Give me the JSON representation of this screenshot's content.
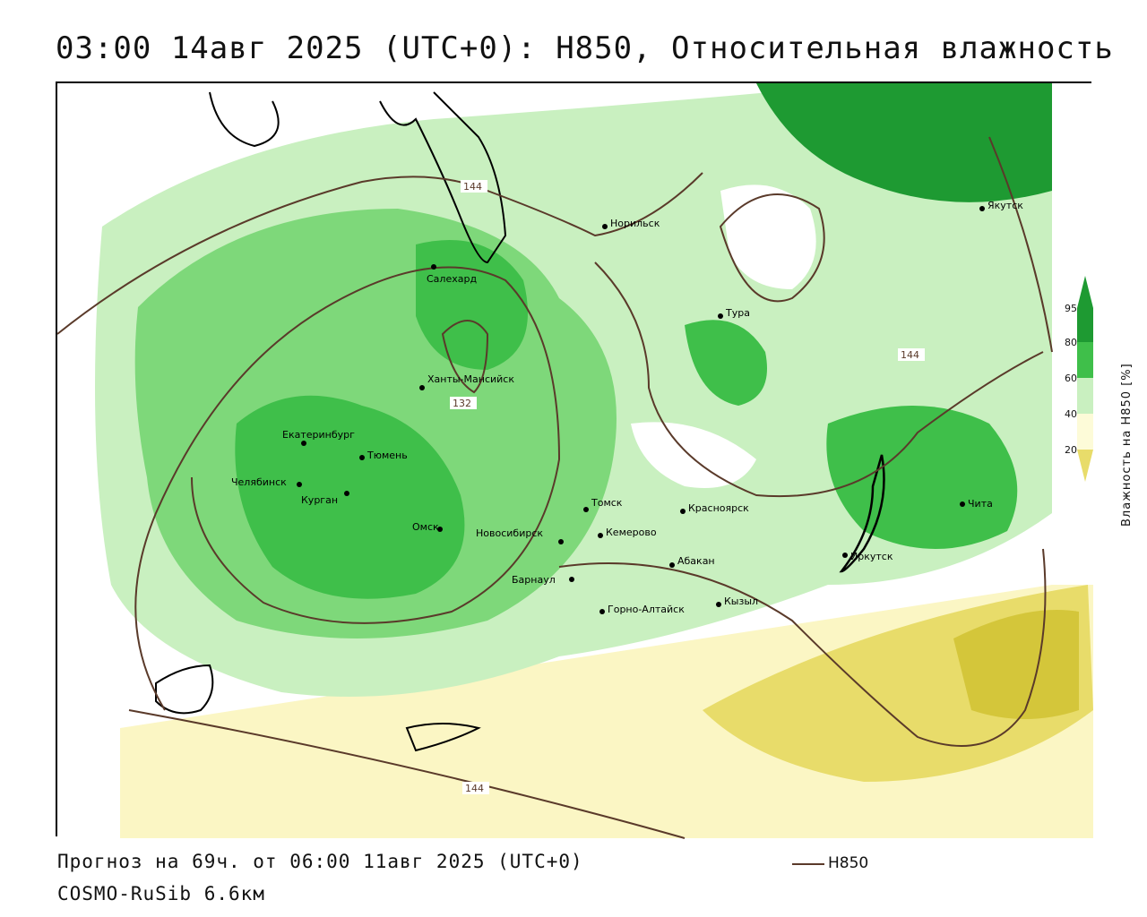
{
  "title": "03:00 14авг 2025 (UTC+0): H850, Относительная влажность",
  "forecast_line": "Прогноз на 69ч. от 06:00 11авг 2025 (UTC+0)",
  "model_line": "COSMO-RuSib 6.6км",
  "legend": {
    "line_label": "H850",
    "line_color": "#5a3a2a"
  },
  "colorbar": {
    "label": "Влажность на H850 [%]",
    "ticks": [
      "20",
      "40",
      "60",
      "80",
      "95"
    ],
    "colors": [
      "#d6c43a",
      "#f3ec9c",
      "#fdfbd8",
      "#ffffff",
      "#c9f0c0",
      "#7ed87a",
      "#3fbf4a",
      "#1e9a32"
    ]
  },
  "contour_labels": [
    "144",
    "144",
    "132",
    "144"
  ],
  "cities": [
    {
      "name": "Якутск"
    },
    {
      "name": "Норильск"
    },
    {
      "name": "Салехард"
    },
    {
      "name": "Тура"
    },
    {
      "name": "Ханты-Мансийск"
    },
    {
      "name": "Екатеринбург"
    },
    {
      "name": "Тюмень"
    },
    {
      "name": "Челябинск"
    },
    {
      "name": "Курган"
    },
    {
      "name": "Омск"
    },
    {
      "name": "Новосибирск"
    },
    {
      "name": "Томск"
    },
    {
      "name": "Кемерово"
    },
    {
      "name": "Красноярск"
    },
    {
      "name": "Абакан"
    },
    {
      "name": "Барнаул"
    },
    {
      "name": "Горно-Алтайск"
    },
    {
      "name": "Кызыл"
    },
    {
      "name": "Иркутск"
    },
    {
      "name": "Чита"
    }
  ]
}
